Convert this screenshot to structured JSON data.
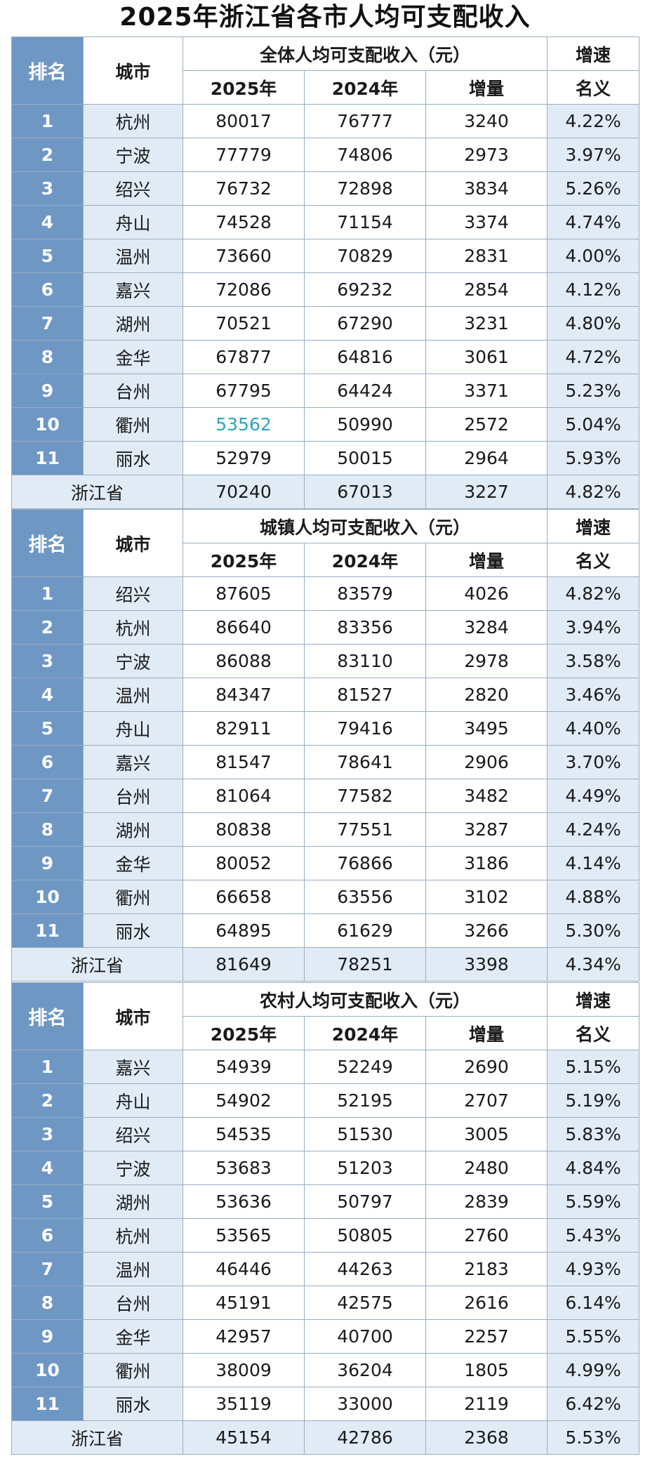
{
  "title": "2025年浙江省各市人均可支配收入",
  "header": {
    "rank": "排名",
    "city": "城市",
    "y2025": "2025年",
    "y2024": "2024年",
    "increase": "增量",
    "growth_top": "增速",
    "growth_bottom": "名义"
  },
  "tables": [
    {
      "heading": "全体人均可支配收入（元）",
      "rows": [
        {
          "rank": "1",
          "city": "杭州",
          "v2025": "80017",
          "v2024": "76777",
          "inc": "3240",
          "growth": "4.22%"
        },
        {
          "rank": "2",
          "city": "宁波",
          "v2025": "77779",
          "v2024": "74806",
          "inc": "2973",
          "growth": "3.97%"
        },
        {
          "rank": "3",
          "city": "绍兴",
          "v2025": "76732",
          "v2024": "72898",
          "inc": "3834",
          "growth": "5.26%"
        },
        {
          "rank": "4",
          "city": "舟山",
          "v2025": "74528",
          "v2024": "71154",
          "inc": "3374",
          "growth": "4.74%"
        },
        {
          "rank": "5",
          "city": "温州",
          "v2025": "73660",
          "v2024": "70829",
          "inc": "2831",
          "growth": "4.00%"
        },
        {
          "rank": "6",
          "city": "嘉兴",
          "v2025": "72086",
          "v2024": "69232",
          "inc": "2854",
          "growth": "4.12%"
        },
        {
          "rank": "7",
          "city": "湖州",
          "v2025": "70521",
          "v2024": "67290",
          "inc": "3231",
          "growth": "4.80%"
        },
        {
          "rank": "8",
          "city": "金华",
          "v2025": "67877",
          "v2024": "64816",
          "inc": "3061",
          "growth": "4.72%"
        },
        {
          "rank": "9",
          "city": "台州",
          "v2025": "67795",
          "v2024": "64424",
          "inc": "3371",
          "growth": "5.23%"
        },
        {
          "rank": "10",
          "city": "衢州",
          "v2025": "53562",
          "v2024": "50990",
          "inc": "2572",
          "growth": "5.04%"
        },
        {
          "rank": "11",
          "city": "丽水",
          "v2025": "52979",
          "v2024": "50015",
          "inc": "2964",
          "growth": "5.93%"
        }
      ],
      "total": {
        "label": "浙江省",
        "v2025": "70240",
        "v2024": "67013",
        "inc": "3227",
        "growth": "4.82%"
      }
    },
    {
      "heading": "城镇人均可支配收入（元）",
      "rows": [
        {
          "rank": "1",
          "city": "绍兴",
          "v2025": "87605",
          "v2024": "83579",
          "inc": "4026",
          "growth": "4.82%"
        },
        {
          "rank": "2",
          "city": "杭州",
          "v2025": "86640",
          "v2024": "83356",
          "inc": "3284",
          "growth": "3.94%"
        },
        {
          "rank": "3",
          "city": "宁波",
          "v2025": "86088",
          "v2024": "83110",
          "inc": "2978",
          "growth": "3.58%"
        },
        {
          "rank": "4",
          "city": "温州",
          "v2025": "84347",
          "v2024": "81527",
          "inc": "2820",
          "growth": "3.46%"
        },
        {
          "rank": "5",
          "city": "舟山",
          "v2025": "82911",
          "v2024": "79416",
          "inc": "3495",
          "growth": "4.40%"
        },
        {
          "rank": "6",
          "city": "嘉兴",
          "v2025": "81547",
          "v2024": "78641",
          "inc": "2906",
          "growth": "3.70%"
        },
        {
          "rank": "7",
          "city": "台州",
          "v2025": "81064",
          "v2024": "77582",
          "inc": "3482",
          "growth": "4.49%"
        },
        {
          "rank": "8",
          "city": "湖州",
          "v2025": "80838",
          "v2024": "77551",
          "inc": "3287",
          "growth": "4.24%"
        },
        {
          "rank": "9",
          "city": "金华",
          "v2025": "80052",
          "v2024": "76866",
          "inc": "3186",
          "growth": "4.14%"
        },
        {
          "rank": "10",
          "city": "衢州",
          "v2025": "66658",
          "v2024": "63556",
          "inc": "3102",
          "growth": "4.88%"
        },
        {
          "rank": "11",
          "city": "丽水",
          "v2025": "64895",
          "v2024": "61629",
          "inc": "3266",
          "growth": "5.30%"
        }
      ],
      "total": {
        "label": "浙江省",
        "v2025": "81649",
        "v2024": "78251",
        "inc": "3398",
        "growth": "4.34%"
      }
    },
    {
      "heading": "农村人均可支配收入（元）",
      "rows": [
        {
          "rank": "1",
          "city": "嘉兴",
          "v2025": "54939",
          "v2024": "52249",
          "inc": "2690",
          "growth": "5.15%"
        },
        {
          "rank": "2",
          "city": "舟山",
          "v2025": "54902",
          "v2024": "52195",
          "inc": "2707",
          "growth": "5.19%"
        },
        {
          "rank": "3",
          "city": "绍兴",
          "v2025": "54535",
          "v2024": "51530",
          "inc": "3005",
          "growth": "5.83%"
        },
        {
          "rank": "4",
          "city": "宁波",
          "v2025": "53683",
          "v2024": "51203",
          "inc": "2480",
          "growth": "4.84%"
        },
        {
          "rank": "5",
          "city": "湖州",
          "v2025": "53636",
          "v2024": "50797",
          "inc": "2839",
          "growth": "5.59%"
        },
        {
          "rank": "6",
          "city": "杭州",
          "v2025": "53565",
          "v2024": "50805",
          "inc": "2760",
          "growth": "5.43%"
        },
        {
          "rank": "7",
          "city": "温州",
          "v2025": "46446",
          "v2024": "44263",
          "inc": "2183",
          "growth": "4.93%"
        },
        {
          "rank": "8",
          "city": "台州",
          "v2025": "45191",
          "v2024": "42575",
          "inc": "2616",
          "growth": "6.14%"
        },
        {
          "rank": "9",
          "city": "金华",
          "v2025": "42957",
          "v2024": "40700",
          "inc": "2257",
          "growth": "5.55%"
        },
        {
          "rank": "10",
          "city": "衢州",
          "v2025": "38009",
          "v2024": "36204",
          "inc": "1805",
          "growth": "4.99%"
        },
        {
          "rank": "11",
          "city": "丽水",
          "v2025": "35119",
          "v2024": "33000",
          "inc": "2119",
          "growth": "6.42%"
        }
      ],
      "total": {
        "label": "浙江省",
        "v2025": "45154",
        "v2024": "42786",
        "inc": "2368",
        "growth": "5.53%"
      }
    }
  ],
  "highlight_color": "#2aa7b8"
}
